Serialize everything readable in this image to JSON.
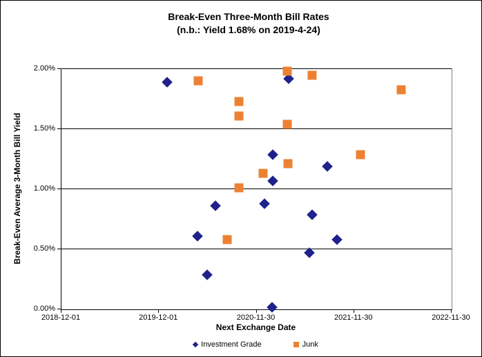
{
  "chart_data": {
    "type": "scatter",
    "title": "Break-Even Three-Month Bill Rates",
    "subtitle": "(n.b.: Yield 1.68% on 2019-4-24)",
    "xlabel": "Next Exchange Date",
    "ylabel": "Break-Even Average 3-Month Bill Yield",
    "x_range": [
      "2018-12-01",
      "2022-11-30"
    ],
    "y_range": [
      0,
      2
    ],
    "x_ticks": [
      "2018-12-01",
      "2019-12-01",
      "2020-11-30",
      "2021-11-30",
      "2022-11-30"
    ],
    "y_ticks": [
      {
        "value": 0.0,
        "label": "0.00%"
      },
      {
        "value": 0.5,
        "label": "0.50%"
      },
      {
        "value": 1.0,
        "label": "1.00%"
      },
      {
        "value": 1.5,
        "label": "1.50%"
      },
      {
        "value": 2.0,
        "label": "2.00%"
      }
    ],
    "grid": "horizontal",
    "legend_position": "bottom",
    "colors": {
      "investment_grade": "#1F218C",
      "junk": "#ED8133",
      "gridline": "#000000",
      "plot_border": "#808080"
    },
    "series": [
      {
        "name": "Investment Grade",
        "marker": "diamond",
        "color": "#1F218C",
        "points": [
          {
            "x": "2020-01-01",
            "y": 1.89
          },
          {
            "x": "2021-03-30",
            "y": 1.92
          },
          {
            "x": "2021-01-29",
            "y": 1.29
          },
          {
            "x": "2021-08-23",
            "y": 1.19
          },
          {
            "x": "2021-01-30",
            "y": 1.07
          },
          {
            "x": "2020-06-30",
            "y": 0.86
          },
          {
            "x": "2020-12-29",
            "y": 0.88
          },
          {
            "x": "2021-06-26",
            "y": 0.79
          },
          {
            "x": "2020-04-22",
            "y": 0.61
          },
          {
            "x": "2021-09-27",
            "y": 0.58
          },
          {
            "x": "2021-06-15",
            "y": 0.47
          },
          {
            "x": "2020-05-28",
            "y": 0.29
          },
          {
            "x": "2021-01-28",
            "y": 0.02
          }
        ]
      },
      {
        "name": "Junk",
        "marker": "square",
        "color": "#ED8133",
        "points": [
          {
            "x": "2020-04-26",
            "y": 1.9
          },
          {
            "x": "2020-09-25",
            "y": 1.73
          },
          {
            "x": "2020-09-25",
            "y": 1.61
          },
          {
            "x": "2021-03-25",
            "y": 1.98
          },
          {
            "x": "2021-06-26",
            "y": 1.95
          },
          {
            "x": "2022-05-25",
            "y": 1.83
          },
          {
            "x": "2021-03-25",
            "y": 1.54
          },
          {
            "x": "2020-12-25",
            "y": 1.13
          },
          {
            "x": "2021-03-27",
            "y": 1.21
          },
          {
            "x": "2020-09-25",
            "y": 1.01
          },
          {
            "x": "2021-12-25",
            "y": 1.29
          },
          {
            "x": "2020-08-11",
            "y": 0.58
          }
        ]
      }
    ]
  }
}
